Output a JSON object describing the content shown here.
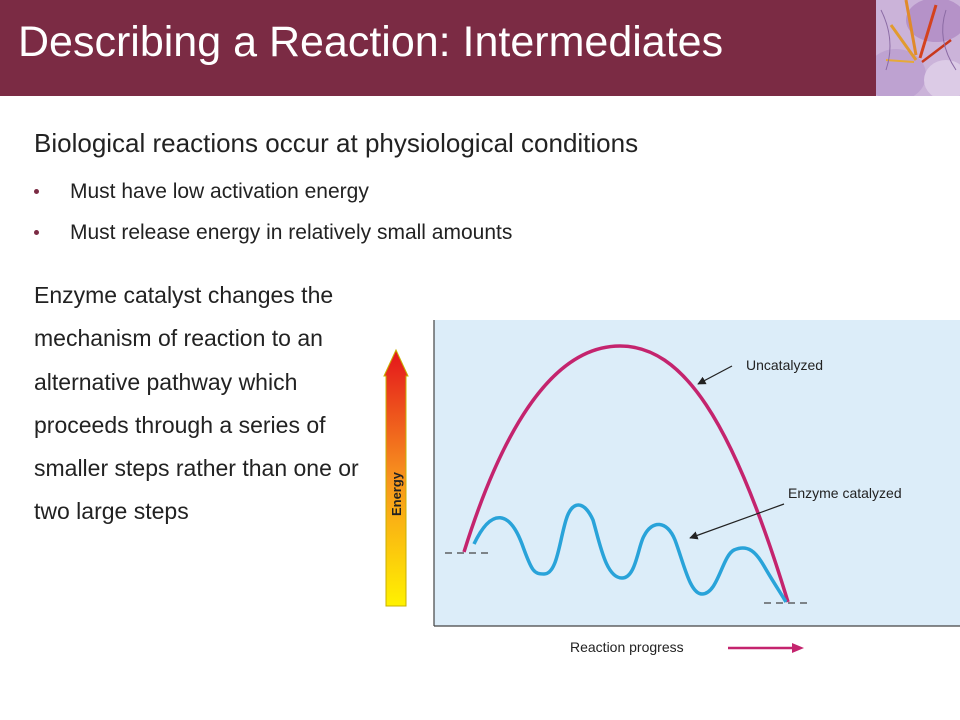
{
  "title": "Describing a Reaction: Intermediates",
  "heading": "Biological reactions occur at physiological conditions",
  "bullets": [
    "Must have low activation energy",
    "Must release energy in relatively small amounts"
  ],
  "paragraph": "Enzyme catalyst changes the mechanism of reaction to an alternative pathway which proceeds through a series of smaller steps rather than one or two large steps",
  "diagram": {
    "y_axis_label": "Energy",
    "x_axis_label": "Reaction progress",
    "curve_labels": {
      "uncatalyzed": "Uncatalyzed",
      "enzyme": "Enzyme catalyzed"
    }
  },
  "colors": {
    "title_bar": "#7b2b44",
    "uncatalyzed_curve": "#c4246e",
    "enzyme_curve": "#29a3d9",
    "plot_background": "#dcedf9"
  }
}
